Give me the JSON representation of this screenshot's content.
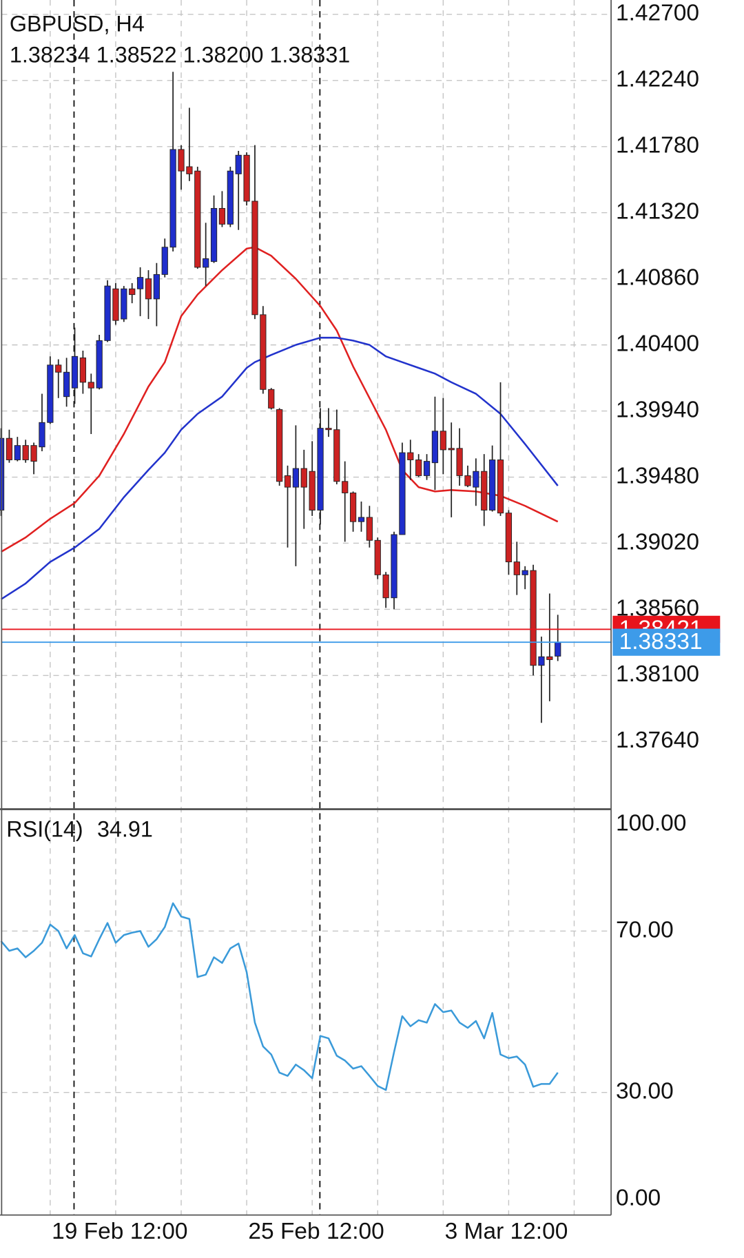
{
  "chart_data": [
    {
      "type": "candlestick",
      "title": "GBPUSD, H4",
      "subtitle": "1.38234 1.38522 1.38200 1.38331",
      "categories": [
        null,
        null,
        null,
        null,
        null,
        null,
        "19 Feb 12:00",
        null,
        null,
        null,
        null,
        null,
        null,
        null,
        null,
        null,
        null,
        null,
        null,
        null,
        null,
        null,
        null,
        null,
        null,
        null,
        null,
        null,
        null,
        null,
        "25 Feb 12:00",
        null,
        null,
        null,
        null,
        null,
        null,
        null,
        null,
        null,
        null,
        null,
        null,
        null,
        null,
        null,
        null,
        null,
        null,
        null,
        null,
        null,
        null,
        null,
        "3 Mar 12:00",
        null,
        null,
        null,
        null,
        null,
        null,
        null,
        null,
        null,
        null,
        null,
        null,
        null,
        null
      ],
      "open": [
        1.3925,
        1.3975,
        1.396,
        1.397,
        1.397,
        1.3969,
        1.3986,
        1.4026,
        1.4004,
        1.401,
        1.4031,
        1.4014,
        1.401,
        1.4043,
        1.4079,
        1.4058,
        1.4079,
        1.4079,
        1.4086,
        1.4072,
        1.4089,
        1.4108,
        1.4176,
        1.4164,
        1.4161,
        1.4094,
        1.4098,
        1.4135,
        1.4124,
        1.4159,
        1.4172,
        1.414,
        1.4061,
        1.4009,
        1.3995,
        1.3949,
        1.3941,
        1.3954,
        1.3952,
        1.3925,
        1.3982,
        1.3981,
        1.3945,
        1.3937,
        1.3917,
        1.392,
        1.3904,
        1.388,
        1.3864,
        1.3908,
        1.3965,
        1.396,
        1.3949,
        1.3958,
        1.398,
        1.3968,
        1.3968,
        1.3949,
        1.3941,
        1.3952,
        1.3925,
        1.396,
        1.3923,
        1.3889,
        1.388,
        1.3883,
        1.3817,
        1.3823,
        1.38234
      ],
      "high": [
        1.3982,
        1.3981,
        1.3976,
        1.3974,
        1.3972,
        1.4006,
        1.4032,
        1.403,
        1.4031,
        1.4052,
        1.4036,
        1.402,
        1.4047,
        1.4085,
        1.4083,
        1.4081,
        1.4083,
        1.4094,
        1.4092,
        1.4097,
        1.4114,
        1.423,
        1.4179,
        1.4205,
        1.4164,
        1.4125,
        1.4144,
        1.4147,
        1.4164,
        1.4175,
        1.4174,
        1.4179,
        1.4067,
        1.401,
        1.3996,
        1.3956,
        1.3984,
        1.3967,
        1.3973,
        1.3996,
        1.3996,
        1.3995,
        1.3959,
        1.3938,
        1.3931,
        1.3928,
        1.3906,
        1.3882,
        1.391,
        1.3972,
        1.3974,
        1.3964,
        1.3964,
        1.4004,
        1.4003,
        1.3986,
        1.3982,
        1.3956,
        1.3961,
        1.3964,
        1.397,
        1.4014,
        1.3925,
        1.3903,
        1.3886,
        1.3887,
        1.3837,
        1.3867,
        1.38522
      ],
      "low": [
        1.3921,
        1.3958,
        1.3959,
        1.3958,
        1.395,
        1.3966,
        1.3985,
        1.4003,
        1.3997,
        1.3999,
        1.4006,
        1.3978,
        1.4009,
        1.4042,
        1.4054,
        1.4056,
        1.4069,
        1.406,
        1.4058,
        1.4053,
        1.4087,
        1.4105,
        1.4148,
        1.4154,
        1.4093,
        1.4081,
        1.4097,
        1.4122,
        1.4122,
        1.412,
        1.4137,
        1.4058,
        1.4006,
        1.3995,
        1.3942,
        1.3899,
        1.3886,
        1.3912,
        1.3921,
        1.3915,
        1.3976,
        1.3943,
        1.3903,
        1.391,
        1.391,
        1.3899,
        1.3877,
        1.3857,
        1.3856,
        1.3908,
        1.3946,
        1.3948,
        1.3946,
        1.3939,
        1.395,
        1.392,
        1.3942,
        1.3941,
        1.3928,
        1.3914,
        1.3924,
        1.3921,
        1.388,
        1.3866,
        1.387,
        1.381,
        1.3777,
        1.3792,
        1.382
      ],
      "close": [
        1.3975,
        1.396,
        1.397,
        1.396,
        1.3959,
        1.3986,
        1.4026,
        1.4021,
        1.4021,
        1.4032,
        1.4014,
        1.401,
        1.4043,
        1.4081,
        1.4057,
        1.4079,
        1.4075,
        1.4087,
        1.4072,
        1.4089,
        1.4108,
        1.4176,
        1.4161,
        1.4159,
        1.4094,
        1.41,
        1.4135,
        1.4124,
        1.4161,
        1.4172,
        1.414,
        1.4061,
        1.4009,
        1.3996,
        1.3945,
        1.3941,
        1.3954,
        1.3941,
        1.3925,
        1.3982,
        1.3981,
        1.3945,
        1.3937,
        1.3917,
        1.392,
        1.3904,
        1.388,
        1.3864,
        1.3908,
        1.3965,
        1.396,
        1.3949,
        1.3959,
        1.398,
        1.3967,
        1.3967,
        1.3949,
        1.3942,
        1.3952,
        1.3925,
        1.396,
        1.3923,
        1.3889,
        1.388,
        1.3883,
        1.3817,
        1.3823,
        1.3821,
        1.38331
      ],
      "up_color": "#1f2ecc",
      "down_color": "#cc2222",
      "series": [
        {
          "color": "#e02020",
          "x": [
            0,
            3,
            6,
            9,
            12,
            15,
            18,
            20,
            22,
            24,
            27,
            30,
            31,
            33,
            36,
            39,
            41,
            43,
            45,
            47,
            49,
            51,
            53,
            55,
            58,
            61,
            64,
            68
          ],
          "values": [
            1.3896,
            1.3906,
            1.3919,
            1.393,
            1.3949,
            1.3978,
            1.4011,
            1.4028,
            1.406,
            1.4075,
            1.4092,
            1.4107,
            1.4108,
            1.4102,
            1.4086,
            1.4067,
            1.405,
            1.4025,
            1.4003,
            1.3981,
            1.3953,
            1.3941,
            1.3938,
            1.3939,
            1.3938,
            1.3935,
            1.3928,
            1.3917
          ]
        },
        {
          "color": "#2233cc",
          "x": [
            0,
            3,
            6,
            9,
            12,
            15,
            18,
            20,
            22,
            24,
            27,
            30,
            31,
            33,
            36,
            39,
            41,
            43,
            45,
            47,
            49,
            51,
            53,
            55,
            58,
            61,
            64,
            68
          ],
          "values": [
            1.3863,
            1.3874,
            1.3889,
            1.3899,
            1.3912,
            1.3934,
            1.3953,
            1.3965,
            1.3981,
            1.3992,
            1.4004,
            1.4024,
            1.4028,
            1.4033,
            1.404,
            1.4045,
            1.4045,
            1.4043,
            1.404,
            1.4032,
            1.4028,
            1.4024,
            1.402,
            1.4014,
            1.4006,
            1.3992,
            1.3971,
            1.3942
          ]
        }
      ],
      "price_lines": [
        {
          "value": 1.38421,
          "label": "1.38421",
          "color": "#e8141c"
        },
        {
          "value": 1.38331,
          "label": "1.38331",
          "color": "#3d9be9"
        }
      ],
      "ylim": [
        1.3718,
        1.428
      ],
      "yticks": [
        {
          "value": 1.427,
          "label": "1.42700"
        },
        {
          "value": 1.4224,
          "label": "1.42240"
        },
        {
          "value": 1.4178,
          "label": "1.41780"
        },
        {
          "value": 1.4132,
          "label": "1.41320"
        },
        {
          "value": 1.4086,
          "label": "1.40860"
        },
        {
          "value": 1.404,
          "label": "1.40400"
        },
        {
          "value": 1.3994,
          "label": "1.39940"
        },
        {
          "value": 1.3948,
          "label": "1.39480"
        },
        {
          "value": 1.3902,
          "label": "1.39020"
        },
        {
          "value": 1.3856,
          "label": "1.38560"
        },
        {
          "value": 1.381,
          "label": "1.38100"
        },
        {
          "value": 1.3764,
          "label": "1.37640"
        }
      ],
      "grid": true
    },
    {
      "type": "line",
      "title": "RSI(14)",
      "series": [
        {
          "color": "#3a9ad9",
          "values": [
            67.5,
            65.1,
            65.7,
            63.5,
            65.1,
            67.1,
            71.6,
            70.0,
            65.7,
            69.0,
            64.5,
            63.7,
            68.0,
            72.0,
            67.1,
            69.0,
            69.6,
            70.0,
            66.1,
            68.0,
            71.0,
            76.9,
            73.6,
            73.0,
            58.6,
            59.2,
            63.5,
            62.1,
            65.7,
            66.9,
            59.8,
            47.3,
            41.4,
            39.4,
            34.9,
            34.1,
            36.9,
            35.5,
            33.5,
            44.0,
            43.4,
            39.1,
            37.9,
            35.9,
            36.5,
            34.1,
            31.6,
            30.6,
            40.0,
            48.9,
            46.4,
            47.9,
            47.3,
            51.9,
            49.9,
            50.3,
            47.3,
            46.0,
            47.7,
            43.4,
            49.7,
            39.4,
            38.5,
            38.9,
            36.9,
            31.4,
            32.1,
            32.1,
            34.91
          ]
        }
      ],
      "ylim": [
        0,
        100
      ],
      "yticks": [
        {
          "value": 0,
          "label": "0.00"
        },
        {
          "value": 30,
          "label": "30.00"
        },
        {
          "value": 70,
          "label": "70.00"
        },
        {
          "value": 100,
          "label": "100.00"
        }
      ],
      "grid": true
    }
  ]
}
